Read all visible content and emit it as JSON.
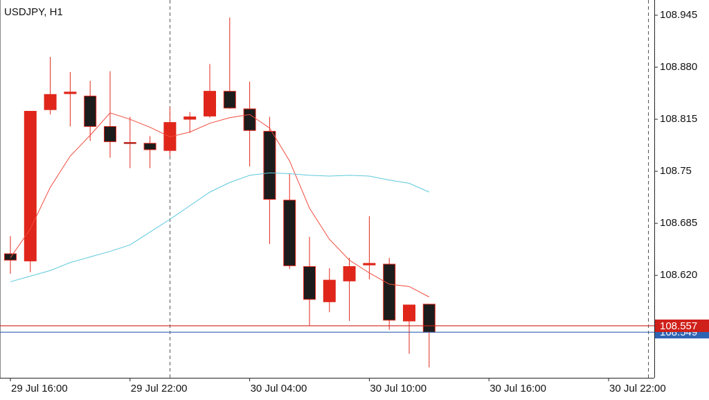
{
  "chart_data": {
    "type": "candlestick",
    "title": "USDJPY, H1",
    "categories": [
      "29 Jul 16:00",
      null,
      null,
      null,
      null,
      null,
      "29 Jul 22:00",
      null,
      null,
      null,
      null,
      null,
      "30 Jul 04:00",
      null,
      null,
      null,
      null,
      null,
      "30 Jul 10:00",
      null,
      null,
      null,
      null,
      null,
      "30 Jul 16:00",
      null,
      null,
      null,
      null,
      null,
      "30 Jul 22:00",
      null,
      null
    ],
    "open": [
      108.647,
      108.638,
      108.827,
      108.847,
      108.844,
      108.806,
      108.786,
      108.785,
      108.776,
      108.815,
      108.819,
      108.85,
      108.828,
      108.8,
      108.714,
      108.631,
      108.587,
      108.613,
      108.633,
      108.634,
      108.563,
      108.584,
      null,
      null,
      null,
      null,
      null,
      null,
      null,
      null,
      null,
      null,
      null
    ],
    "high": [
      108.669,
      108.825,
      108.893,
      108.874,
      108.863,
      108.875,
      108.818,
      108.794,
      108.83,
      108.824,
      108.884,
      108.942,
      108.862,
      108.818,
      108.747,
      108.668,
      108.629,
      108.642,
      108.694,
      108.642,
      108.583,
      108.584,
      null,
      null,
      null,
      null,
      null,
      null,
      null,
      null,
      null,
      null,
      null
    ],
    "low": [
      108.622,
      108.624,
      108.821,
      108.806,
      108.788,
      108.767,
      108.754,
      108.754,
      108.769,
      108.798,
      108.817,
      108.828,
      108.756,
      108.659,
      108.628,
      108.557,
      108.574,
      108.563,
      108.615,
      108.552,
      108.522,
      108.505,
      null,
      null,
      null,
      null,
      null,
      null,
      null,
      null,
      null,
      null,
      null
    ],
    "close": [
      108.639,
      108.825,
      108.846,
      108.849,
      108.806,
      108.787,
      108.785,
      108.777,
      108.811,
      108.818,
      108.85,
      108.829,
      108.801,
      108.715,
      108.632,
      108.59,
      108.614,
      108.631,
      108.635,
      108.564,
      108.583,
      108.549,
      null,
      null,
      null,
      null,
      null,
      null,
      null,
      null,
      null,
      null,
      null
    ],
    "up_color": "#e0261b",
    "down_color": "#1c1c1c",
    "overlays": [
      {
        "color": "#f0493c",
        "values": [
          108.642,
          108.678,
          108.73,
          108.769,
          108.795,
          108.823,
          108.815,
          108.805,
          108.793,
          108.799,
          108.81,
          108.817,
          108.821,
          108.804,
          108.763,
          108.704,
          108.665,
          108.639,
          108.623,
          108.609,
          108.606,
          108.593,
          null,
          null,
          null,
          null,
          null,
          null,
          null,
          null,
          null,
          null,
          null
        ]
      },
      {
        "color": "#5cc8dc",
        "values": [
          108.612,
          108.619,
          108.626,
          108.636,
          108.643,
          108.65,
          108.658,
          108.674,
          108.69,
          108.707,
          108.724,
          108.736,
          108.745,
          108.748,
          108.747,
          108.745,
          108.744,
          108.745,
          108.744,
          108.739,
          108.735,
          108.724,
          null,
          null,
          null,
          null,
          null,
          null,
          null,
          null,
          null,
          null,
          null
        ]
      }
    ],
    "price_lines": [
      {
        "value": 108.549,
        "color": "#2f64b4"
      },
      {
        "value": 108.557,
        "color": "#d0201a"
      }
    ],
    "ylim": [
      108.492,
      108.964
    ],
    "yticks": [
      {
        "value": 108.62,
        "label": "108.620"
      },
      108.685,
      108.75,
      108.815,
      {
        "value": 108.88,
        "label": "108.880"
      },
      108.945
    ]
  }
}
